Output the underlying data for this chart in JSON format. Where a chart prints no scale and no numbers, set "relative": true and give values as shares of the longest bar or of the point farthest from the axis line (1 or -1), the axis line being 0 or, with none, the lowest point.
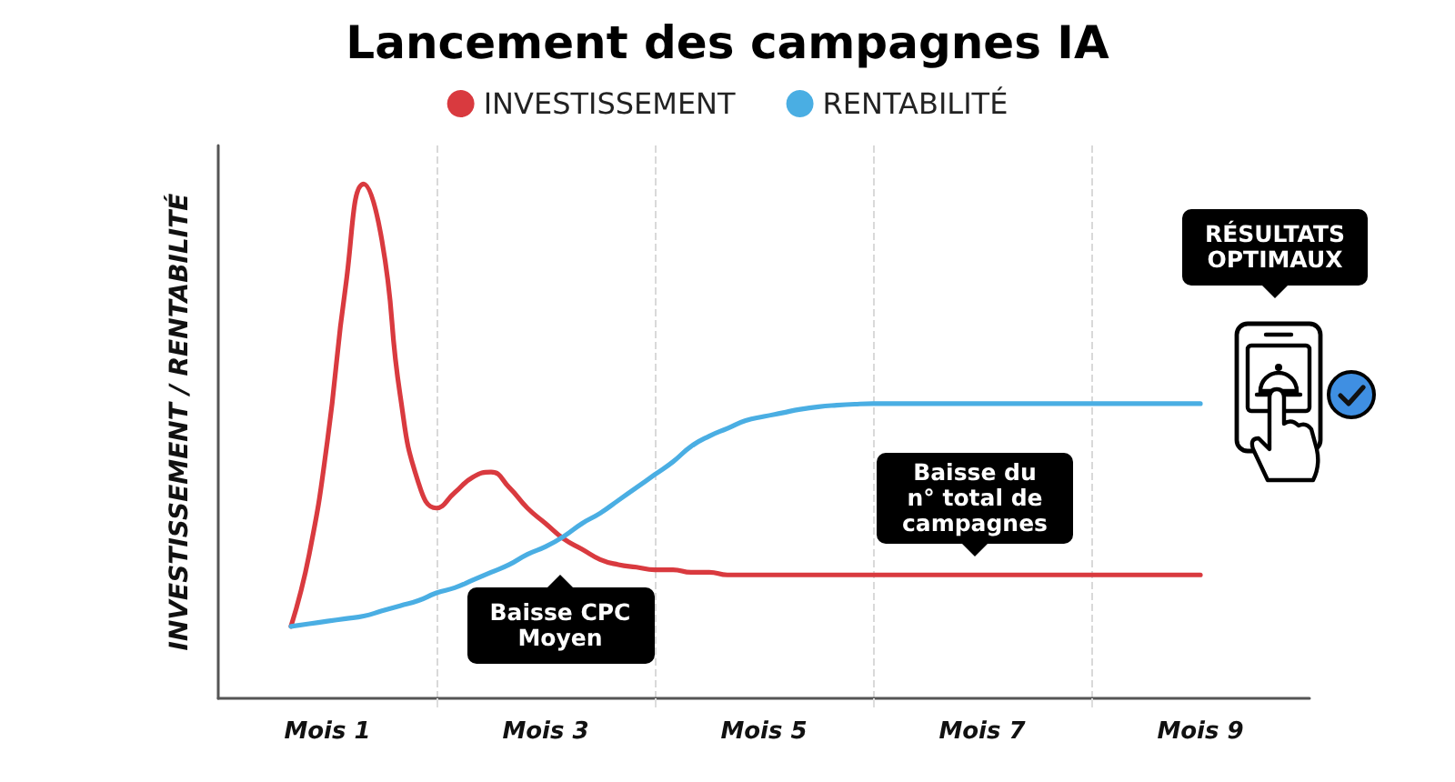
{
  "chart_data": {
    "type": "line",
    "title": "Lancement des campagnes IA",
    "ylabel": "INVESTISSEMENT / RENTABILITÉ",
    "relative": true,
    "tick_labels": "x",
    "categories": [
      null,
      null,
      null,
      null,
      null,
      null,
      "Mois 1",
      null,
      null,
      null,
      null,
      null,
      null,
      null,
      null,
      null,
      null,
      null,
      "Mois 3",
      null,
      null,
      null,
      null,
      null,
      null,
      null,
      null,
      null,
      null,
      null,
      "Mois 5",
      null,
      null,
      null,
      null,
      null,
      null,
      null,
      null,
      null,
      null,
      null,
      "Mois 7",
      null,
      null,
      null,
      null,
      null,
      null,
      null,
      null,
      null,
      null,
      null,
      "Mois 9",
      null,
      null,
      null,
      null,
      null,
      null
    ],
    "series": [
      {
        "name": "INVESTISSEMENT",
        "color": "#d93a3f",
        "values": [
          null,
          null,
          null,
          null,
          0.14,
          0.28,
          0.5,
          0.8,
          1,
          0.89,
          0.59,
          0.42,
          0.37,
          0.4,
          0.43,
          0.44,
          0.41,
          0.37,
          0.34,
          0.31,
          0.29,
          0.27,
          0.26,
          0.255,
          0.25,
          0.25,
          0.245,
          0.245,
          0.24,
          0.24,
          0.24,
          0.24,
          0.24,
          0.24,
          0.24,
          0.24,
          0.24,
          0.24,
          0.24,
          0.24,
          0.24,
          0.24,
          0.24,
          0.24,
          0.24,
          0.24,
          0.24,
          0.24,
          0.24,
          0.24,
          0.24,
          0.24,
          0.24,
          0.24,
          0.24,
          null,
          null,
          null,
          null,
          null,
          null
        ]
      },
      {
        "name": "RENTABILITÉ",
        "color": "#4aaee3",
        "values": [
          null,
          null,
          null,
          null,
          0.14,
          0.145,
          0.15,
          0.155,
          0.16,
          0.17,
          0.18,
          0.19,
          0.205,
          0.215,
          0.23,
          0.245,
          0.26,
          0.28,
          0.295,
          0.315,
          0.34,
          0.36,
          0.385,
          0.41,
          0.435,
          0.46,
          0.49,
          0.51,
          0.525,
          0.54,
          0.548,
          0.555,
          0.562,
          0.567,
          0.57,
          0.572,
          0.573,
          0.573,
          0.573,
          0.573,
          0.573,
          0.573,
          0.573,
          0.573,
          0.573,
          0.573,
          0.573,
          0.573,
          0.573,
          0.573,
          0.573,
          0.573,
          0.573,
          0.573,
          0.573,
          null,
          null,
          null,
          null,
          null,
          null
        ]
      }
    ],
    "annotations": [
      "Baisse CPC Moyen",
      "Baisse du n° total de campagnes",
      "RÉSULTATS OPTIMAUX"
    ],
    "legend": "top",
    "grid": "x",
    "marker": "none",
    "line_style": "solid"
  }
}
